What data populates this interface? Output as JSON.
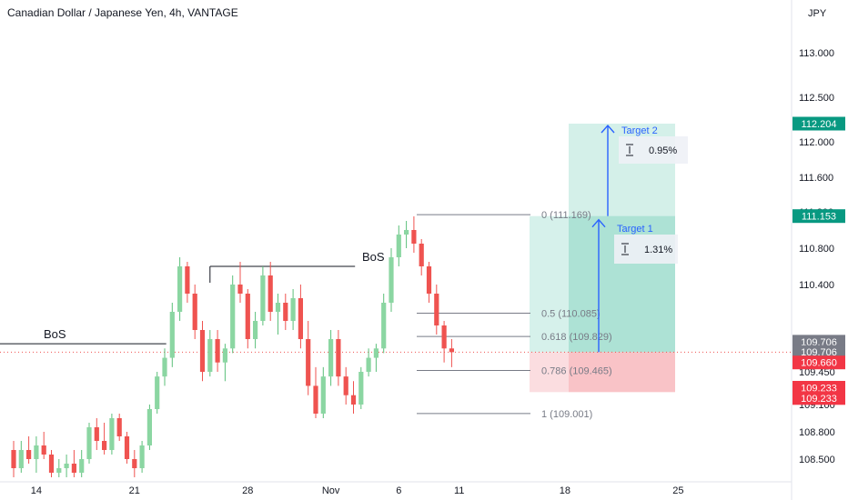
{
  "chart_title": "Canadian Dollar / Japanese Yen, 4h, VANTAGE",
  "currency_label": "JPY",
  "colors": {
    "up": "#26a69a",
    "up_light": "#8bd6a2",
    "down": "#ef5350",
    "target_zone": "#cfeee7",
    "target_zone_dark": "#a8e0d3",
    "stop_zone": "#f9c3c7",
    "stop_zone_light": "#fbdde0",
    "arrow": "#2962ff",
    "fib_line": "#787b86"
  },
  "chart_data": {
    "type": "candlestick",
    "symbol": "CADJPY",
    "timeframe": "4h",
    "ylim": [
      108.3,
      113.4
    ],
    "yticks": [
      108.5,
      108.8,
      109.1,
      109.45,
      109.8,
      110.4,
      110.8,
      111.2,
      111.6,
      112.0,
      112.5,
      113.0
    ],
    "ytick_labels": [
      "108.500",
      "108.800",
      "109.100",
      "109.450",
      "109.800",
      "110.400",
      "110.800",
      "111.200",
      "111.600",
      "112.000",
      "112.500",
      "113.000"
    ],
    "xticks": [
      {
        "label": "14",
        "index": 3
      },
      {
        "label": "21",
        "index": 16
      },
      {
        "label": "28",
        "index": 31
      },
      {
        "label": "Nov",
        "index": 42
      },
      {
        "label": "6",
        "index": 51
      },
      {
        "label": "11",
        "index": 59
      },
      {
        "label": "18",
        "index": 73
      },
      {
        "label": "25",
        "index": 88
      }
    ],
    "candles": [
      {
        "o": 108.6,
        "h": 108.7,
        "l": 108.3,
        "c": 108.4
      },
      {
        "o": 108.4,
        "h": 108.7,
        "l": 108.35,
        "c": 108.6
      },
      {
        "o": 108.6,
        "h": 108.75,
        "l": 108.45,
        "c": 108.5
      },
      {
        "o": 108.5,
        "h": 108.75,
        "l": 108.35,
        "c": 108.65
      },
      {
        "o": 108.65,
        "h": 108.8,
        "l": 108.5,
        "c": 108.55
      },
      {
        "o": 108.55,
        "h": 108.6,
        "l": 108.3,
        "c": 108.35
      },
      {
        "o": 108.35,
        "h": 108.5,
        "l": 108.3,
        "c": 108.4
      },
      {
        "o": 108.4,
        "h": 108.55,
        "l": 108.3,
        "c": 108.45
      },
      {
        "o": 108.45,
        "h": 108.6,
        "l": 108.3,
        "c": 108.35
      },
      {
        "o": 108.35,
        "h": 108.6,
        "l": 108.3,
        "c": 108.5
      },
      {
        "o": 108.5,
        "h": 108.9,
        "l": 108.45,
        "c": 108.85
      },
      {
        "o": 108.85,
        "h": 108.95,
        "l": 108.6,
        "c": 108.7
      },
      {
        "o": 108.7,
        "h": 108.9,
        "l": 108.55,
        "c": 108.6
      },
      {
        "o": 108.6,
        "h": 109.0,
        "l": 108.55,
        "c": 108.95
      },
      {
        "o": 108.95,
        "h": 109.0,
        "l": 108.7,
        "c": 108.75
      },
      {
        "o": 108.75,
        "h": 108.8,
        "l": 108.45,
        "c": 108.5
      },
      {
        "o": 108.5,
        "h": 108.6,
        "l": 108.3,
        "c": 108.4
      },
      {
        "o": 108.4,
        "h": 108.7,
        "l": 108.35,
        "c": 108.65
      },
      {
        "o": 108.65,
        "h": 109.1,
        "l": 108.6,
        "c": 109.05
      },
      {
        "o": 109.05,
        "h": 109.45,
        "l": 109.0,
        "c": 109.4
      },
      {
        "o": 109.4,
        "h": 109.7,
        "l": 109.3,
        "c": 109.6
      },
      {
        "o": 109.6,
        "h": 110.2,
        "l": 109.5,
        "c": 110.1
      },
      {
        "o": 110.1,
        "h": 110.7,
        "l": 110.0,
        "c": 110.6
      },
      {
        "o": 110.6,
        "h": 110.65,
        "l": 110.2,
        "c": 110.3
      },
      {
        "o": 110.3,
        "h": 110.4,
        "l": 109.8,
        "c": 109.9
      },
      {
        "o": 109.9,
        "h": 110.0,
        "l": 109.35,
        "c": 109.45
      },
      {
        "o": 109.45,
        "h": 109.9,
        "l": 109.4,
        "c": 109.8
      },
      {
        "o": 109.8,
        "h": 109.9,
        "l": 109.45,
        "c": 109.55
      },
      {
        "o": 109.55,
        "h": 109.75,
        "l": 109.35,
        "c": 109.7
      },
      {
        "o": 109.7,
        "h": 110.5,
        "l": 109.65,
        "c": 110.4
      },
      {
        "o": 110.4,
        "h": 110.65,
        "l": 110.2,
        "c": 110.3
      },
      {
        "o": 110.3,
        "h": 110.35,
        "l": 109.7,
        "c": 109.8
      },
      {
        "o": 109.8,
        "h": 110.1,
        "l": 109.7,
        "c": 110.0
      },
      {
        "o": 110.0,
        "h": 110.6,
        "l": 109.95,
        "c": 110.5
      },
      {
        "o": 110.5,
        "h": 110.65,
        "l": 110.0,
        "c": 110.1
      },
      {
        "o": 110.1,
        "h": 110.3,
        "l": 109.85,
        "c": 110.2
      },
      {
        "o": 110.2,
        "h": 110.3,
        "l": 109.9,
        "c": 110.0
      },
      {
        "o": 110.0,
        "h": 110.35,
        "l": 109.9,
        "c": 110.25
      },
      {
        "o": 110.25,
        "h": 110.4,
        "l": 109.7,
        "c": 109.8
      },
      {
        "o": 109.8,
        "h": 110.0,
        "l": 109.2,
        "c": 109.3
      },
      {
        "o": 109.3,
        "h": 109.5,
        "l": 108.95,
        "c": 109.0
      },
      {
        "o": 109.0,
        "h": 109.5,
        "l": 108.95,
        "c": 109.4
      },
      {
        "o": 109.4,
        "h": 109.9,
        "l": 109.3,
        "c": 109.8
      },
      {
        "o": 109.8,
        "h": 109.9,
        "l": 109.3,
        "c": 109.4
      },
      {
        "o": 109.4,
        "h": 109.5,
        "l": 109.1,
        "c": 109.2
      },
      {
        "o": 109.2,
        "h": 109.35,
        "l": 109.0,
        "c": 109.1
      },
      {
        "o": 109.1,
        "h": 109.5,
        "l": 109.05,
        "c": 109.45
      },
      {
        "o": 109.45,
        "h": 109.7,
        "l": 109.4,
        "c": 109.6
      },
      {
        "o": 109.6,
        "h": 109.75,
        "l": 109.45,
        "c": 109.7
      },
      {
        "o": 109.7,
        "h": 110.3,
        "l": 109.65,
        "c": 110.2
      },
      {
        "o": 110.2,
        "h": 110.8,
        "l": 110.1,
        "c": 110.7
      },
      {
        "o": 110.7,
        "h": 111.05,
        "l": 110.6,
        "c": 110.95
      },
      {
        "o": 110.95,
        "h": 111.1,
        "l": 110.8,
        "c": 111.0
      },
      {
        "o": 111.0,
        "h": 111.15,
        "l": 110.75,
        "c": 110.85
      },
      {
        "o": 110.85,
        "h": 110.9,
        "l": 110.5,
        "c": 110.6
      },
      {
        "o": 110.6,
        "h": 110.65,
        "l": 110.2,
        "c": 110.3
      },
      {
        "o": 110.3,
        "h": 110.4,
        "l": 109.85,
        "c": 109.95
      },
      {
        "o": 109.95,
        "h": 110.0,
        "l": 109.55,
        "c": 109.7
      },
      {
        "o": 109.7,
        "h": 109.8,
        "l": 109.5,
        "c": 109.66
      }
    ],
    "fib_levels": [
      {
        "ratio": "0",
        "price": 111.169,
        "label": "0 (111.169)"
      },
      {
        "ratio": "0.5",
        "price": 110.085,
        "label": "0.5 (110.085)"
      },
      {
        "ratio": "0.618",
        "price": 109.829,
        "label": "0.618 (109.829)"
      },
      {
        "ratio": "0.786",
        "price": 109.465,
        "label": "0.786 (109.465)"
      },
      {
        "ratio": "1",
        "price": 109.001,
        "label": "1 (109.001)"
      }
    ],
    "bos_levels": [
      {
        "label": "BoS",
        "price": 109.75,
        "from_index": -1,
        "to_index": 19
      },
      {
        "label": "BoS",
        "price": 110.6,
        "from_index": 26,
        "to_index": 44
      }
    ],
    "targets": [
      {
        "name": "Target 1",
        "pct": "1.31%",
        "price": 111.153
      },
      {
        "name": "Target 2",
        "pct": "0.95%",
        "price": 112.204
      }
    ],
    "entry_price": 109.66,
    "stop_price": 109.233,
    "price_labels": [
      {
        "text": "112.204",
        "price": 112.204,
        "kind": "green"
      },
      {
        "text": "111.153",
        "price": 111.153,
        "kind": "green"
      },
      {
        "text": "109.706",
        "price": 109.772,
        "kind": "gray"
      },
      {
        "text": "109.706",
        "price": 109.662,
        "kind": "gray"
      },
      {
        "text": "109.660",
        "price": 109.55,
        "kind": "red"
      },
      {
        "text": "109.233",
        "price": 109.28,
        "kind": "red"
      },
      {
        "text": "109.233",
        "price": 109.17,
        "kind": "red"
      }
    ]
  }
}
